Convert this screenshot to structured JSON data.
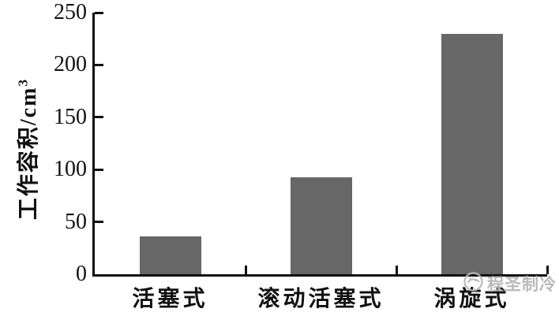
{
  "chart_data": {
    "type": "bar",
    "title": "",
    "categories": [
      "活塞式",
      "滚动活塞式",
      "涡旋式"
    ],
    "values": [
      36,
      93,
      230
    ],
    "xlabel": "",
    "ylabel": "工作容积/cm³",
    "ylabel_base": "工作容积/cm",
    "ylabel_sup": "3",
    "ylim": [
      0,
      250
    ],
    "yticks": [
      0,
      50,
      100,
      150,
      200,
      250
    ],
    "grid": false,
    "legend": null,
    "bar_color": "#676767",
    "axis_color": "#111111",
    "background": "#ffffff"
  },
  "watermark": {
    "icon": "swirl-logo-icon",
    "text": "程圣制冷",
    "color": "#b3b3b3"
  }
}
